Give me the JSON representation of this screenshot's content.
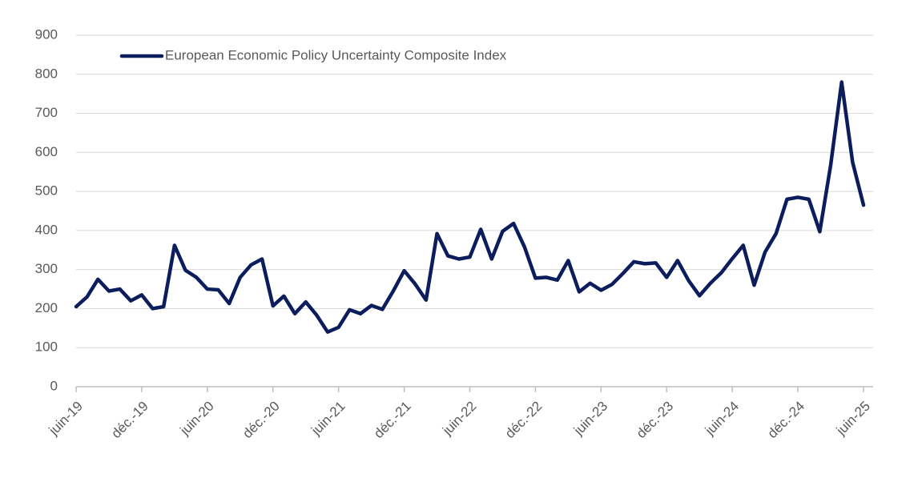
{
  "chart_data": {
    "type": "line",
    "categories": [
      "juin-19",
      null,
      null,
      null,
      null,
      null,
      "déc.-19",
      null,
      null,
      null,
      null,
      null,
      "juin-20",
      null,
      null,
      null,
      null,
      null,
      "déc.-20",
      null,
      null,
      null,
      null,
      null,
      "juin-21",
      null,
      null,
      null,
      null,
      null,
      "déc.-21",
      null,
      null,
      null,
      null,
      null,
      "juin-22",
      null,
      null,
      null,
      null,
      null,
      "déc.-22",
      null,
      null,
      null,
      null,
      null,
      "juin-23",
      null,
      null,
      null,
      null,
      null,
      "déc.-23",
      null,
      null,
      null,
      null,
      null,
      "juin-24",
      null,
      null,
      null,
      null,
      null,
      "déc.-24",
      null,
      null,
      null,
      null,
      null,
      "juin-25"
    ],
    "series": [
      {
        "name": "European Economic Policy Uncertainty Composite Index",
        "color": "#0c1d5e",
        "values": [
          205,
          230,
          275,
          245,
          250,
          220,
          235,
          200,
          205,
          362,
          298,
          280,
          250,
          248,
          213,
          280,
          312,
          327,
          207,
          232,
          187,
          217,
          183,
          140,
          152,
          197,
          187,
          208,
          198,
          245,
          297,
          263,
          222,
          392,
          335,
          327,
          332,
          403,
          327,
          398,
          418,
          358,
          278,
          280,
          273,
          323,
          243,
          265,
          247,
          262,
          290,
          320,
          315,
          317,
          280,
          323,
          272,
          233,
          265,
          292,
          328,
          362,
          260,
          345,
          392,
          480,
          485,
          480,
          397,
          568,
          780,
          575,
          465
        ]
      }
    ],
    "ylim": [
      0,
      900
    ],
    "yticks": [
      0,
      100,
      200,
      300,
      400,
      500,
      600,
      700,
      800,
      900
    ],
    "grid": true,
    "legend": "top-left"
  }
}
